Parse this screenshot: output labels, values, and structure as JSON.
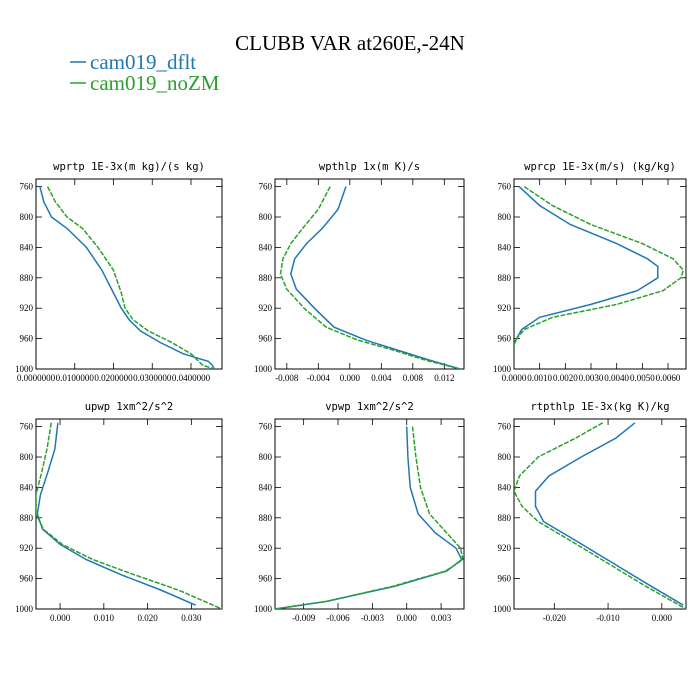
{
  "figure": {
    "title": "CLUBB VAR at260E,-24N",
    "legend": [
      {
        "label": "cam019_dflt",
        "color": "#1f77b4"
      },
      {
        "label": "cam019_noZM",
        "color": "#2ca02c"
      }
    ]
  },
  "chart_data": [
    {
      "type": "line",
      "title": "wprtp   1E-3x(m kg)/(s kg)",
      "xlim": [
        0.0,
        0.048
      ],
      "ylim": [
        1000,
        750
      ],
      "xticks": [
        "0.0000000",
        "0.0100000",
        "0.0200000",
        "0.0300000",
        "0.0400000"
      ],
      "xtick_values": [
        0.0,
        0.01,
        0.02,
        0.03,
        0.04
      ],
      "yticks": [
        760,
        800,
        840,
        880,
        920,
        960,
        1000
      ],
      "series": [
        {
          "name": "cam019_dflt",
          "x": [
            0.001,
            0.002,
            0.004,
            0.008,
            0.013,
            0.017,
            0.02,
            0.022,
            0.024,
            0.027,
            0.032,
            0.038,
            0.0445,
            0.0455,
            0.046
          ],
          "y": [
            760,
            780,
            800,
            815,
            840,
            870,
            900,
            920,
            935,
            950,
            965,
            980,
            990,
            995,
            1000
          ]
        },
        {
          "name": "cam019_noZM",
          "x": [
            0.003,
            0.005,
            0.008,
            0.012,
            0.016,
            0.02,
            0.022,
            0.023,
            0.025,
            0.029,
            0.035,
            0.04,
            0.042,
            0.043,
            0.046
          ],
          "y": [
            760,
            780,
            800,
            815,
            840,
            870,
            900,
            920,
            935,
            950,
            965,
            980,
            990,
            995,
            1000
          ]
        }
      ]
    },
    {
      "type": "line",
      "title": "wpthlp   1x(m K)/s",
      "xlim": [
        -0.0095,
        0.0145
      ],
      "ylim": [
        1000,
        750
      ],
      "xticks": [
        "-0.008",
        "-0.004",
        "0.000",
        "0.004",
        "0.008",
        "0.012"
      ],
      "xtick_values": [
        -0.008,
        -0.004,
        0.0,
        0.004,
        0.008,
        0.012
      ],
      "yticks": [
        760,
        800,
        840,
        880,
        920,
        960,
        1000
      ],
      "series": [
        {
          "name": "cam019_dflt",
          "x": [
            -0.0005,
            -0.0015,
            -0.0035,
            -0.0055,
            -0.007,
            -0.0075,
            -0.0068,
            -0.0045,
            -0.002,
            0.002,
            0.006,
            0.01,
            0.014
          ],
          "y": [
            760,
            790,
            815,
            835,
            855,
            875,
            895,
            920,
            945,
            962,
            975,
            988,
            1000
          ]
        },
        {
          "name": "cam019_noZM",
          "x": [
            -0.0025,
            -0.004,
            -0.006,
            -0.0075,
            -0.0085,
            -0.0088,
            -0.008,
            -0.0058,
            -0.003,
            0.001,
            0.0055,
            0.0095,
            0.014
          ],
          "y": [
            760,
            790,
            815,
            835,
            855,
            875,
            895,
            920,
            945,
            962,
            975,
            988,
            1000
          ]
        }
      ]
    },
    {
      "type": "line",
      "title": "wprcp   1E-3x(m/s) (kg/kg)",
      "xlim": [
        0.0,
        0.0067
      ],
      "ylim": [
        1000,
        750
      ],
      "xticks": [
        "0.0000",
        "0.0010",
        "0.0020",
        "0.0030",
        "0.0040",
        "0.0050",
        "0.0060"
      ],
      "xtick_values": [
        0.0,
        0.001,
        0.002,
        0.003,
        0.004,
        0.005,
        0.006
      ],
      "yticks": [
        760,
        800,
        840,
        880,
        920,
        960,
        1000
      ],
      "series": [
        {
          "name": "cam019_dflt",
          "x": [
            0.0002,
            0.001,
            0.0022,
            0.004,
            0.0052,
            0.0056,
            0.0056,
            0.0048,
            0.003,
            0.001,
            0.0003,
            0.0001,
            0.0
          ],
          "y": [
            760,
            785,
            810,
            835,
            855,
            865,
            880,
            897,
            915,
            932,
            948,
            960,
            968
          ]
        },
        {
          "name": "cam019_noZM",
          "x": [
            0.0004,
            0.0015,
            0.003,
            0.005,
            0.0062,
            0.0066,
            0.0065,
            0.0058,
            0.004,
            0.0015,
            0.0004,
            0.0001,
            0.0
          ],
          "y": [
            760,
            785,
            810,
            835,
            855,
            870,
            880,
            897,
            915,
            932,
            948,
            960,
            968
          ]
        }
      ]
    },
    {
      "type": "line",
      "title": "upwp   1xm^2/s^2",
      "xlim": [
        -0.0055,
        0.037
      ],
      "ylim": [
        1000,
        750
      ],
      "xticks": [
        "0.000",
        "0.010",
        "0.020",
        "0.030"
      ],
      "xtick_values": [
        0.0,
        0.01,
        0.02,
        0.03
      ],
      "yticks": [
        760,
        800,
        840,
        880,
        920,
        960,
        1000
      ],
      "series": [
        {
          "name": "cam019_dflt",
          "x": [
            -0.0005,
            -0.0012,
            -0.0028,
            -0.0045,
            -0.0052,
            -0.004,
            0.0,
            0.006,
            0.014,
            0.023,
            0.031
          ],
          "y": [
            755,
            790,
            820,
            850,
            875,
            895,
            915,
            935,
            955,
            975,
            995
          ]
        },
        {
          "name": "cam019_noZM",
          "x": [
            -0.002,
            -0.003,
            -0.0042,
            -0.0055,
            -0.0055,
            -0.0038,
            0.0005,
            0.0075,
            0.017,
            0.027,
            0.037
          ],
          "y": [
            755,
            790,
            820,
            850,
            875,
            895,
            915,
            935,
            955,
            975,
            1000
          ]
        }
      ]
    },
    {
      "type": "line",
      "title": "vpwp   1xm^2/s^2",
      "xlim": [
        -0.0115,
        0.005
      ],
      "ylim": [
        1000,
        750
      ],
      "xticks": [
        "-0.009",
        "-0.006",
        "-0.003",
        "0.000",
        "0.003"
      ],
      "xtick_values": [
        -0.009,
        -0.006,
        -0.003,
        0.0,
        0.003
      ],
      "yticks": [
        760,
        800,
        840,
        880,
        920,
        960,
        1000
      ],
      "series": [
        {
          "name": "cam019_dflt",
          "x": [
            0.0,
            0.0001,
            0.0003,
            0.001,
            0.0025,
            0.0043,
            0.0048,
            0.0035,
            -0.001,
            -0.007,
            -0.0115
          ],
          "y": [
            760,
            800,
            840,
            875,
            900,
            920,
            935,
            950,
            970,
            990,
            1000
          ]
        },
        {
          "name": "cam019_noZM",
          "x": [
            0.0005,
            0.0008,
            0.0012,
            0.002,
            0.0035,
            0.0047,
            0.0049,
            0.0034,
            -0.0012,
            -0.007,
            -0.0115
          ],
          "y": [
            760,
            800,
            840,
            875,
            900,
            920,
            935,
            950,
            970,
            990,
            1000
          ]
        }
      ]
    },
    {
      "type": "line",
      "title": "rtpthlp   1E-3x(kg K)/kg",
      "xlim": [
        -0.0275,
        0.0045
      ],
      "ylim": [
        1000,
        750
      ],
      "xticks": [
        "-0.020",
        "-0.010",
        "0.000"
      ],
      "xtick_values": [
        -0.02,
        -0.01,
        0.0
      ],
      "yticks": [
        760,
        800,
        840,
        880,
        920,
        960,
        1000
      ],
      "series": [
        {
          "name": "cam019_dflt",
          "x": [
            -0.005,
            -0.0085,
            -0.015,
            -0.021,
            -0.0235,
            -0.0235,
            -0.022,
            -0.016,
            -0.009,
            -0.002,
            0.004
          ],
          "y": [
            755,
            775,
            800,
            825,
            845,
            865,
            885,
            910,
            940,
            970,
            995
          ]
        },
        {
          "name": "cam019_noZM",
          "x": [
            -0.011,
            -0.016,
            -0.023,
            -0.0265,
            -0.0275,
            -0.026,
            -0.023,
            -0.017,
            -0.01,
            -0.003,
            0.0045
          ],
          "y": [
            755,
            775,
            800,
            825,
            845,
            865,
            885,
            910,
            940,
            970,
            1000
          ]
        }
      ]
    }
  ]
}
